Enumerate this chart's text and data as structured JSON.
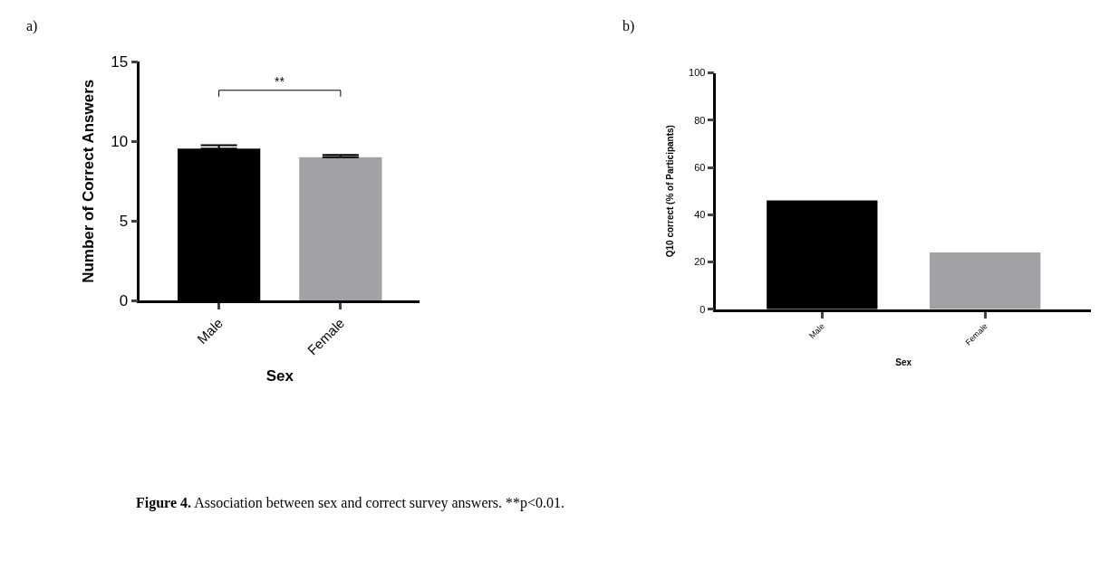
{
  "chart_data": [
    {
      "type": "bar",
      "categories": [
        "Male",
        "Female"
      ],
      "xlabel": "Sex",
      "ylabel": "Number of Correct Answers",
      "values": [
        9.55,
        9.0
      ],
      "errors": [
        [
          9.55,
          9.75
        ],
        [
          9.0,
          9.15
        ]
      ],
      "colors": [
        "#000000",
        "#a2a1a6"
      ],
      "ylim": [
        0,
        15
      ],
      "yticks": [
        0,
        5,
        10,
        15
      ],
      "annotations": [
        "a)",
        "**",
        "Figure 4. Association between sex and correct survey answers. **p<0.01."
      ]
    },
    {
      "type": "bar",
      "categories": [
        "Male",
        "Female"
      ],
      "xlabel": "Sex",
      "ylabel": "Q10 correct (% of Participants)",
      "values": [
        46,
        24
      ],
      "colors": [
        "#000000",
        "#a2a1a6"
      ],
      "ylim": [
        0,
        100
      ],
      "yticks": [
        0,
        20,
        40,
        60,
        80,
        100
      ],
      "annotations": [
        "b)"
      ]
    }
  ]
}
